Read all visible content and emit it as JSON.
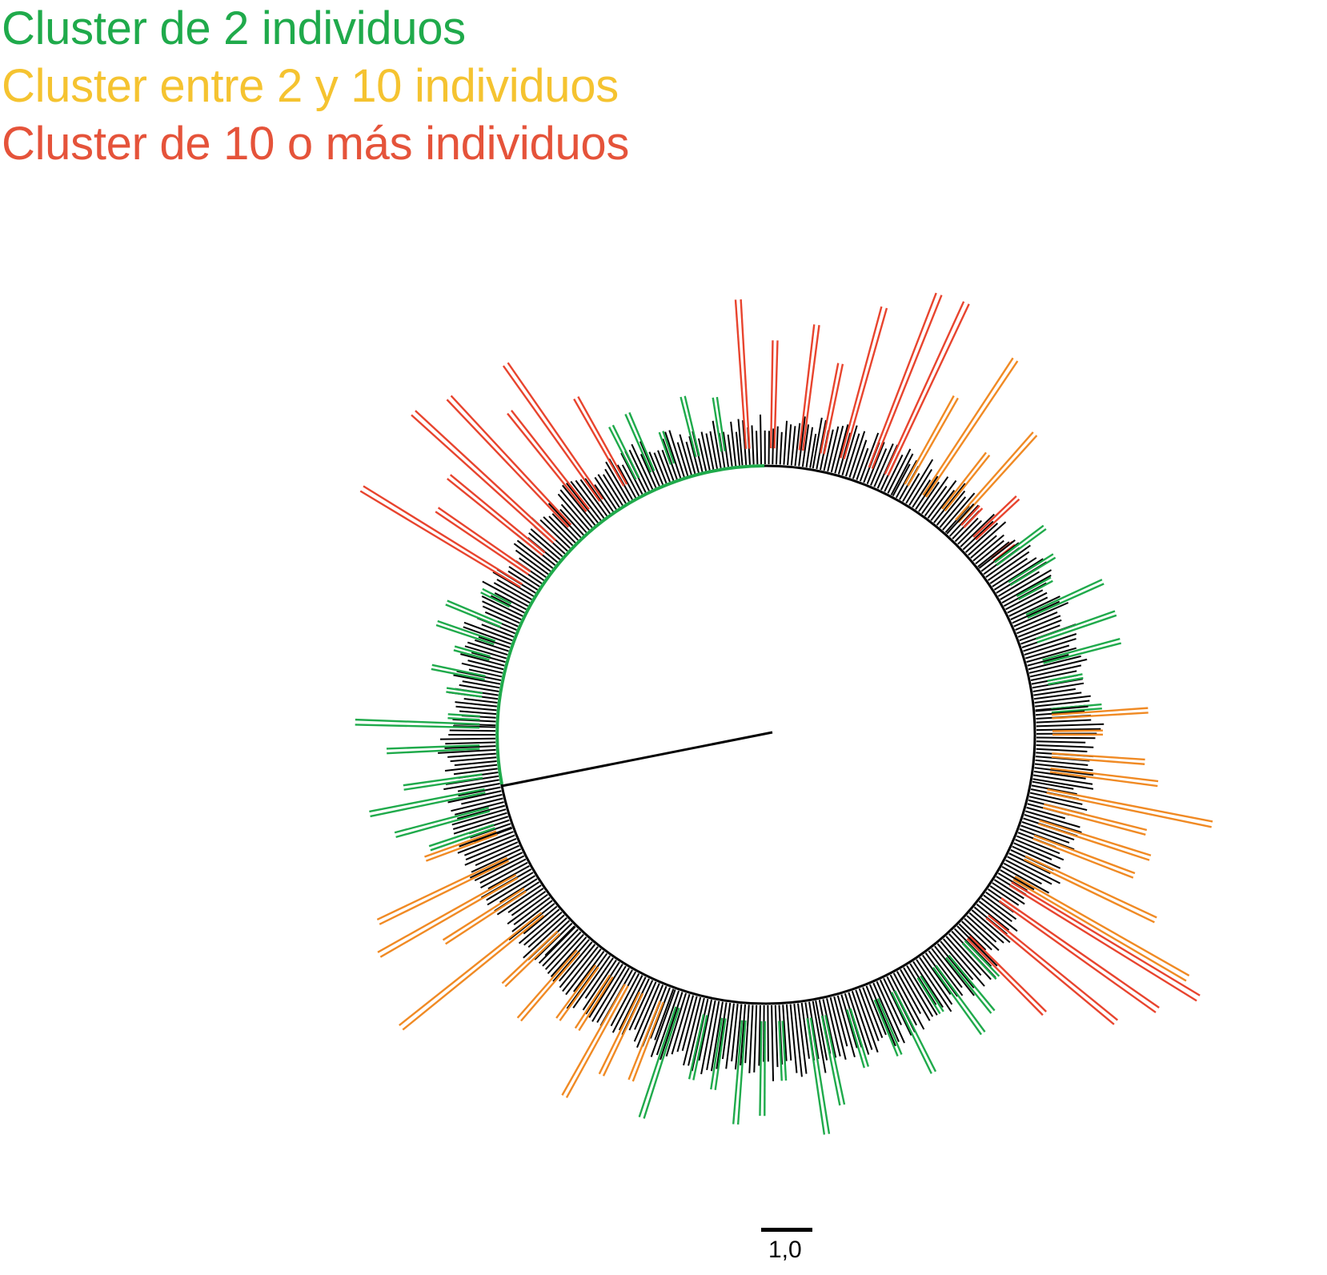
{
  "legend": [
    {
      "label": "Cluster de 2 individuos",
      "color": "#1faa4b"
    },
    {
      "label": "Cluster entre 2 y 10 individuos",
      "color": "#f5c330"
    },
    {
      "label": "Cluster de 10 o más individuos",
      "color": "#e5533a"
    }
  ],
  "branch_colors": {
    "two": "#1faa4b",
    "between": "#f08a24",
    "ten_plus": "#e8442e",
    "unclustered": "#000000"
  },
  "scale_bar": {
    "label": "1,0"
  }
}
